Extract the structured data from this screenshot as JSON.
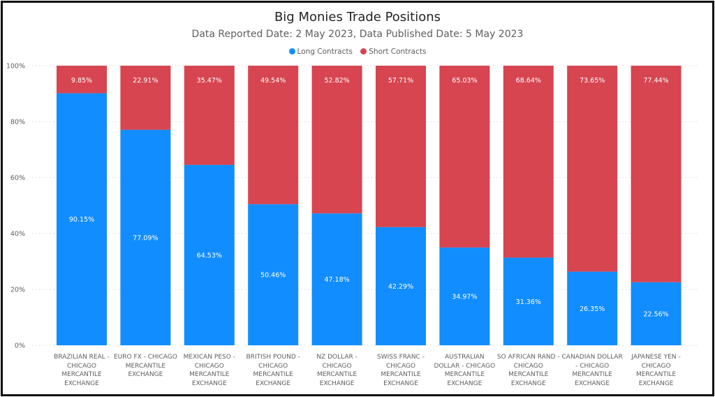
{
  "chart_data": {
    "type": "bar",
    "stacked": "100%",
    "title": "Big Monies Trade Positions",
    "subtitle": "Data Reported Date: 2 May 2023, Data Published Date: 5 May 2023",
    "legend_position": "top-center",
    "grid": true,
    "ylim": [
      0,
      100
    ],
    "yticks": [
      "0%",
      "20%",
      "40%",
      "60%",
      "80%",
      "100%"
    ],
    "categories": [
      "BRAZILIAN REAL - CHICAGO MERCANTILE EXCHANGE",
      "EURO FX - CHICAGO MERCANTILE EXCHANGE",
      "MEXICAN PESO - CHICAGO MERCANTILE EXCHANGE",
      "BRITISH POUND - CHICAGO MERCANTILE EXCHANGE",
      "NZ DOLLAR - CHICAGO MERCANTILE EXCHANGE",
      "SWISS FRANC - CHICAGO MERCANTILE EXCHANGE",
      "AUSTRALIAN DOLLAR - CHICAGO MERCANTILE EXCHANGE",
      "SO AFRICAN RAND - CHICAGO MERCANTILE EXCHANGE",
      "CANADIAN DOLLAR - CHICAGO MERCANTILE EXCHANGE",
      "JAPANESE YEN - CHICAGO MERCANTILE EXCHANGE"
    ],
    "series": [
      {
        "name": "Long Contracts",
        "color": "#118DFF",
        "values": [
          90.15,
          77.09,
          64.53,
          50.46,
          47.18,
          42.29,
          34.97,
          31.36,
          26.35,
          22.56
        ],
        "labels": [
          "90.15%",
          "77.09%",
          "64.53%",
          "50.46%",
          "47.18%",
          "42.29%",
          "34.97%",
          "31.36%",
          "26.35%",
          "22.56%"
        ]
      },
      {
        "name": "Short Contracts",
        "color": "#D64550",
        "values": [
          9.85,
          22.91,
          35.47,
          49.54,
          52.82,
          57.71,
          65.03,
          68.64,
          73.65,
          77.44
        ],
        "labels": [
          "9.85%",
          "22.91%",
          "35.47%",
          "49.54%",
          "52.82%",
          "57.71%",
          "65.03%",
          "68.64%",
          "73.65%",
          "77.44%"
        ]
      }
    ]
  }
}
